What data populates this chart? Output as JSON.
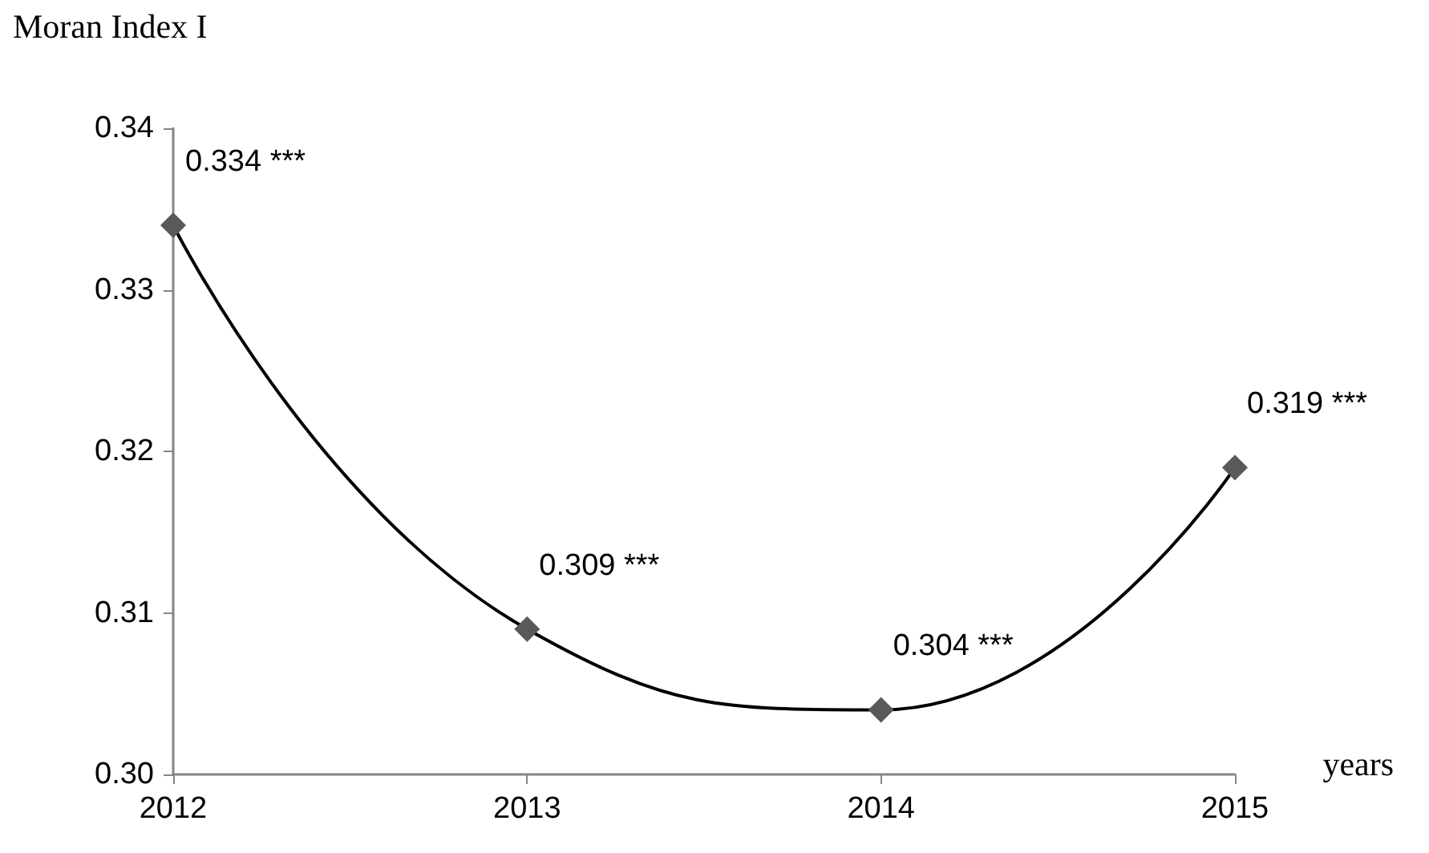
{
  "chart_data": {
    "type": "line",
    "ylabel": "Moran Index I",
    "xlabel": "years",
    "categories": [
      "2012",
      "2013",
      "2014",
      "2015"
    ],
    "series": [
      {
        "color": "#595959",
        "values": [
          0.334,
          0.309,
          0.304,
          0.319
        ],
        "value_labels": [
          "0.334 ***",
          "0.309 ***",
          "0.304 ***",
          "0.319 ***"
        ]
      }
    ],
    "ylim": [
      0.3,
      0.34
    ],
    "yticks": [
      {
        "value": 0.3,
        "label": "0.30"
      },
      0.31,
      0.32,
      0.33,
      0.34
    ],
    "marker": "diamond",
    "line_style": "solid",
    "grid": false
  }
}
